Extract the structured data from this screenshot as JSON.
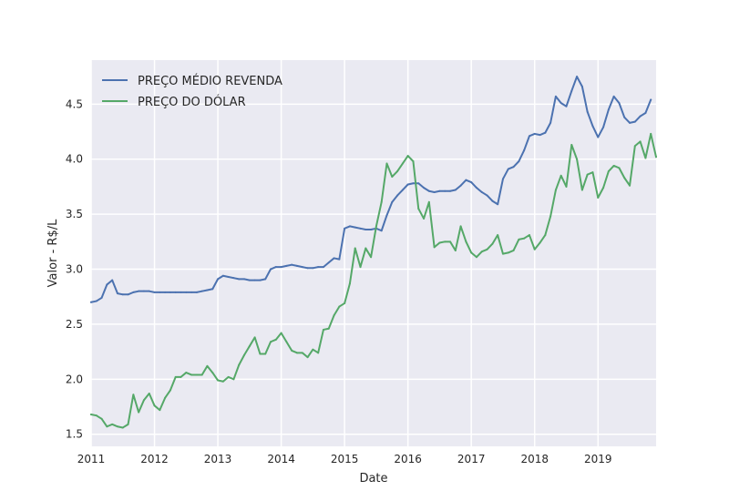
{
  "chart_data": {
    "type": "line",
    "title": "",
    "xlabel": "Date",
    "ylabel": "Valor - R$/L",
    "xlim": [
      "2011-01",
      "2019-12"
    ],
    "ylim": [
      1.39,
      4.9
    ],
    "grid": true,
    "legend_position": "top-left",
    "x_ticks": [
      {
        "label": "2011",
        "value": "2011-01"
      },
      {
        "label": "2012",
        "value": "2012-01"
      },
      {
        "label": "2013",
        "value": "2013-01"
      },
      {
        "label": "2014",
        "value": "2014-01"
      },
      {
        "label": "2015",
        "value": "2015-01"
      },
      {
        "label": "2016",
        "value": "2016-01"
      },
      {
        "label": "2017",
        "value": "2017-01"
      },
      {
        "label": "2018",
        "value": "2018-01"
      },
      {
        "label": "2019",
        "value": "2019-01"
      }
    ],
    "y_ticks": [
      {
        "label": "1.5",
        "value": 1.5
      },
      {
        "label": "2.0",
        "value": 2.0
      },
      {
        "label": "2.5",
        "value": 2.5
      },
      {
        "label": "3.0",
        "value": 3.0
      },
      {
        "label": "3.5",
        "value": 3.5
      },
      {
        "label": "4.0",
        "value": 4.0
      },
      {
        "label": "4.5",
        "value": 4.5
      }
    ],
    "series": [
      {
        "name": "PREÇO MÉDIO REVENDA",
        "color": "#4c72b0",
        "points": [
          [
            "2011-01",
            2.7
          ],
          [
            "2011-02",
            2.71
          ],
          [
            "2011-03",
            2.74
          ],
          [
            "2011-04",
            2.86
          ],
          [
            "2011-05",
            2.9
          ],
          [
            "2011-06",
            2.78
          ],
          [
            "2011-07",
            2.77
          ],
          [
            "2011-08",
            2.77
          ],
          [
            "2011-09",
            2.79
          ],
          [
            "2011-10",
            2.8
          ],
          [
            "2011-11",
            2.8
          ],
          [
            "2011-12",
            2.8
          ],
          [
            "2012-01",
            2.79
          ],
          [
            "2012-02",
            2.79
          ],
          [
            "2012-03",
            2.79
          ],
          [
            "2012-04",
            2.79
          ],
          [
            "2012-05",
            2.79
          ],
          [
            "2012-06",
            2.79
          ],
          [
            "2012-07",
            2.79
          ],
          [
            "2012-08",
            2.79
          ],
          [
            "2012-09",
            2.79
          ],
          [
            "2012-10",
            2.8
          ],
          [
            "2012-11",
            2.81
          ],
          [
            "2012-12",
            2.82
          ],
          [
            "2013-01",
            2.91
          ],
          [
            "2013-02",
            2.94
          ],
          [
            "2013-03",
            2.93
          ],
          [
            "2013-04",
            2.92
          ],
          [
            "2013-05",
            2.91
          ],
          [
            "2013-06",
            2.91
          ],
          [
            "2013-07",
            2.9
          ],
          [
            "2013-08",
            2.9
          ],
          [
            "2013-09",
            2.9
          ],
          [
            "2013-10",
            2.91
          ],
          [
            "2013-11",
            3.0
          ],
          [
            "2013-12",
            3.02
          ],
          [
            "2014-01",
            3.02
          ],
          [
            "2014-02",
            3.03
          ],
          [
            "2014-03",
            3.04
          ],
          [
            "2014-04",
            3.03
          ],
          [
            "2014-05",
            3.02
          ],
          [
            "2014-06",
            3.01
          ],
          [
            "2014-07",
            3.01
          ],
          [
            "2014-08",
            3.02
          ],
          [
            "2014-09",
            3.02
          ],
          [
            "2014-10",
            3.06
          ],
          [
            "2014-11",
            3.1
          ],
          [
            "2014-12",
            3.09
          ],
          [
            "2015-01",
            3.37
          ],
          [
            "2015-02",
            3.39
          ],
          [
            "2015-03",
            3.38
          ],
          [
            "2015-04",
            3.37
          ],
          [
            "2015-05",
            3.36
          ],
          [
            "2015-06",
            3.36
          ],
          [
            "2015-07",
            3.37
          ],
          [
            "2015-08",
            3.35
          ],
          [
            "2015-09",
            3.49
          ],
          [
            "2015-10",
            3.61
          ],
          [
            "2015-11",
            3.67
          ],
          [
            "2015-12",
            3.72
          ],
          [
            "2016-01",
            3.77
          ],
          [
            "2016-02",
            3.78
          ],
          [
            "2016-03",
            3.78
          ],
          [
            "2016-04",
            3.74
          ],
          [
            "2016-05",
            3.71
          ],
          [
            "2016-06",
            3.7
          ],
          [
            "2016-07",
            3.71
          ],
          [
            "2016-08",
            3.71
          ],
          [
            "2016-09",
            3.71
          ],
          [
            "2016-10",
            3.72
          ],
          [
            "2016-11",
            3.76
          ],
          [
            "2016-12",
            3.81
          ],
          [
            "2017-01",
            3.79
          ],
          [
            "2017-02",
            3.74
          ],
          [
            "2017-03",
            3.7
          ],
          [
            "2017-04",
            3.67
          ],
          [
            "2017-05",
            3.62
          ],
          [
            "2017-06",
            3.59
          ],
          [
            "2017-07",
            3.82
          ],
          [
            "2017-08",
            3.91
          ],
          [
            "2017-09",
            3.93
          ],
          [
            "2017-10",
            3.98
          ],
          [
            "2017-11",
            4.08
          ],
          [
            "2017-12",
            4.21
          ],
          [
            "2018-01",
            4.23
          ],
          [
            "2018-02",
            4.22
          ],
          [
            "2018-03",
            4.24
          ],
          [
            "2018-04",
            4.33
          ],
          [
            "2018-05",
            4.57
          ],
          [
            "2018-06",
            4.51
          ],
          [
            "2018-07",
            4.48
          ],
          [
            "2018-08",
            4.62
          ],
          [
            "2018-09",
            4.75
          ],
          [
            "2018-10",
            4.66
          ],
          [
            "2018-11",
            4.43
          ],
          [
            "2018-12",
            4.3
          ],
          [
            "2019-01",
            4.2
          ],
          [
            "2019-02",
            4.29
          ],
          [
            "2019-03",
            4.45
          ],
          [
            "2019-04",
            4.57
          ],
          [
            "2019-05",
            4.51
          ],
          [
            "2019-06",
            4.38
          ],
          [
            "2019-07",
            4.33
          ],
          [
            "2019-08",
            4.34
          ],
          [
            "2019-09",
            4.39
          ],
          [
            "2019-10",
            4.42
          ],
          [
            "2019-11",
            4.54
          ]
        ]
      },
      {
        "name": "PREÇO DO DÓLAR",
        "color": "#55a868",
        "points": [
          [
            "2011-01",
            1.68
          ],
          [
            "2011-02",
            1.67
          ],
          [
            "2011-03",
            1.64
          ],
          [
            "2011-04",
            1.57
          ],
          [
            "2011-05",
            1.59
          ],
          [
            "2011-06",
            1.57
          ],
          [
            "2011-07",
            1.56
          ],
          [
            "2011-08",
            1.59
          ],
          [
            "2011-09",
            1.86
          ],
          [
            "2011-10",
            1.7
          ],
          [
            "2011-11",
            1.81
          ],
          [
            "2011-12",
            1.87
          ],
          [
            "2012-01",
            1.76
          ],
          [
            "2012-02",
            1.72
          ],
          [
            "2012-03",
            1.83
          ],
          [
            "2012-04",
            1.9
          ],
          [
            "2012-05",
            2.02
          ],
          [
            "2012-06",
            2.02
          ],
          [
            "2012-07",
            2.06
          ],
          [
            "2012-08",
            2.04
          ],
          [
            "2012-09",
            2.04
          ],
          [
            "2012-10",
            2.04
          ],
          [
            "2012-11",
            2.12
          ],
          [
            "2012-12",
            2.06
          ],
          [
            "2013-01",
            1.99
          ],
          [
            "2013-02",
            1.98
          ],
          [
            "2013-03",
            2.02
          ],
          [
            "2013-04",
            2.0
          ],
          [
            "2013-05",
            2.13
          ],
          [
            "2013-06",
            2.22
          ],
          [
            "2013-07",
            2.3
          ],
          [
            "2013-08",
            2.38
          ],
          [
            "2013-09",
            2.23
          ],
          [
            "2013-10",
            2.23
          ],
          [
            "2013-11",
            2.34
          ],
          [
            "2013-12",
            2.36
          ],
          [
            "2014-01",
            2.42
          ],
          [
            "2014-02",
            2.34
          ],
          [
            "2014-03",
            2.26
          ],
          [
            "2014-04",
            2.24
          ],
          [
            "2014-05",
            2.24
          ],
          [
            "2014-06",
            2.2
          ],
          [
            "2014-07",
            2.27
          ],
          [
            "2014-08",
            2.24
          ],
          [
            "2014-09",
            2.45
          ],
          [
            "2014-10",
            2.46
          ],
          [
            "2014-11",
            2.58
          ],
          [
            "2014-12",
            2.66
          ],
          [
            "2015-01",
            2.69
          ],
          [
            "2015-02",
            2.87
          ],
          [
            "2015-03",
            3.19
          ],
          [
            "2015-04",
            3.02
          ],
          [
            "2015-05",
            3.19
          ],
          [
            "2015-06",
            3.11
          ],
          [
            "2015-07",
            3.39
          ],
          [
            "2015-08",
            3.61
          ],
          [
            "2015-09",
            3.96
          ],
          [
            "2015-10",
            3.84
          ],
          [
            "2015-11",
            3.89
          ],
          [
            "2015-12",
            3.96
          ],
          [
            "2016-01",
            4.03
          ],
          [
            "2016-02",
            3.98
          ],
          [
            "2016-03",
            3.55
          ],
          [
            "2016-04",
            3.46
          ],
          [
            "2016-05",
            3.61
          ],
          [
            "2016-06",
            3.2
          ],
          [
            "2016-07",
            3.24
          ],
          [
            "2016-08",
            3.25
          ],
          [
            "2016-09",
            3.25
          ],
          [
            "2016-10",
            3.17
          ],
          [
            "2016-11",
            3.39
          ],
          [
            "2016-12",
            3.25
          ],
          [
            "2017-01",
            3.15
          ],
          [
            "2017-02",
            3.11
          ],
          [
            "2017-03",
            3.16
          ],
          [
            "2017-04",
            3.18
          ],
          [
            "2017-05",
            3.23
          ],
          [
            "2017-06",
            3.31
          ],
          [
            "2017-07",
            3.14
          ],
          [
            "2017-08",
            3.15
          ],
          [
            "2017-09",
            3.17
          ],
          [
            "2017-10",
            3.27
          ],
          [
            "2017-11",
            3.28
          ],
          [
            "2017-12",
            3.31
          ],
          [
            "2018-01",
            3.18
          ],
          [
            "2018-02",
            3.24
          ],
          [
            "2018-03",
            3.31
          ],
          [
            "2018-04",
            3.48
          ],
          [
            "2018-05",
            3.72
          ],
          [
            "2018-06",
            3.85
          ],
          [
            "2018-07",
            3.75
          ],
          [
            "2018-08",
            4.13
          ],
          [
            "2018-09",
            4.0
          ],
          [
            "2018-10",
            3.72
          ],
          [
            "2018-11",
            3.86
          ],
          [
            "2018-12",
            3.88
          ],
          [
            "2019-01",
            3.65
          ],
          [
            "2019-02",
            3.74
          ],
          [
            "2019-03",
            3.89
          ],
          [
            "2019-04",
            3.94
          ],
          [
            "2019-05",
            3.92
          ],
          [
            "2019-06",
            3.83
          ],
          [
            "2019-07",
            3.76
          ],
          [
            "2019-08",
            4.12
          ],
          [
            "2019-09",
            4.16
          ],
          [
            "2019-10",
            4.01
          ],
          [
            "2019-11",
            4.23
          ],
          [
            "2019-12",
            4.02
          ]
        ]
      }
    ]
  }
}
